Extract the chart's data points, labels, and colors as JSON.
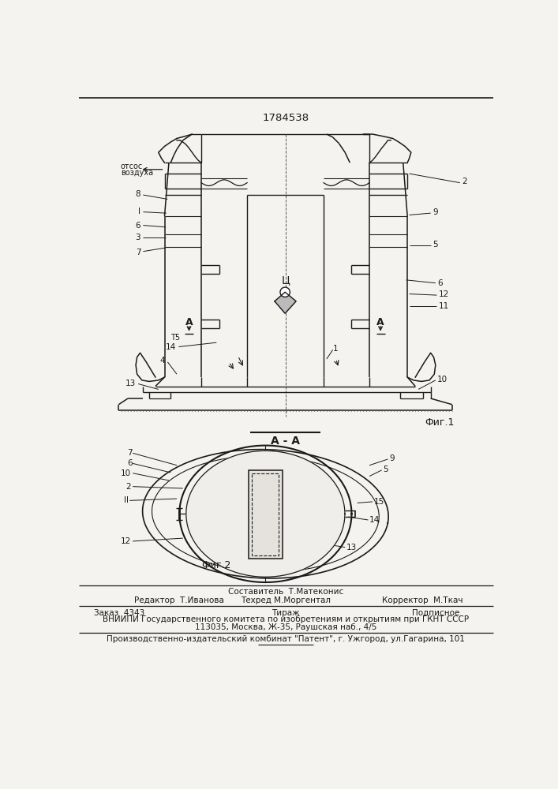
{
  "patent_number": "1784538",
  "bg_color": "#f5f3f0",
  "fig1_label": "Фиг.1",
  "fig2_label": "Фиг.2",
  "section_label": "А - А",
  "footer_col2_row1": "Составитель  Т.Матеконис",
  "footer_col1_row2": "Редактор  Т.Иванова",
  "footer_col2_row2": "Техред М.Моргентал",
  "footer_col3_row2": "Корректор  М.Ткач",
  "footer_order": "Заказ  4343",
  "footer_tirazh": "Тираж",
  "footer_podpisnoe": "Подписное",
  "footer_vniiipi": "ВНИИПИ Государственного комитета по изобретениям и открытиям при ГКНТ СССР",
  "footer_address": "113035, Москва, Ж-35, Раушская наб., 4/5",
  "footer_patent": "Производственно-издательский комбинат \"Патент\", г. Ужгород, ул.Гагарина, 101",
  "lc": "#1a1a1a",
  "tc": "#1a1a1a"
}
